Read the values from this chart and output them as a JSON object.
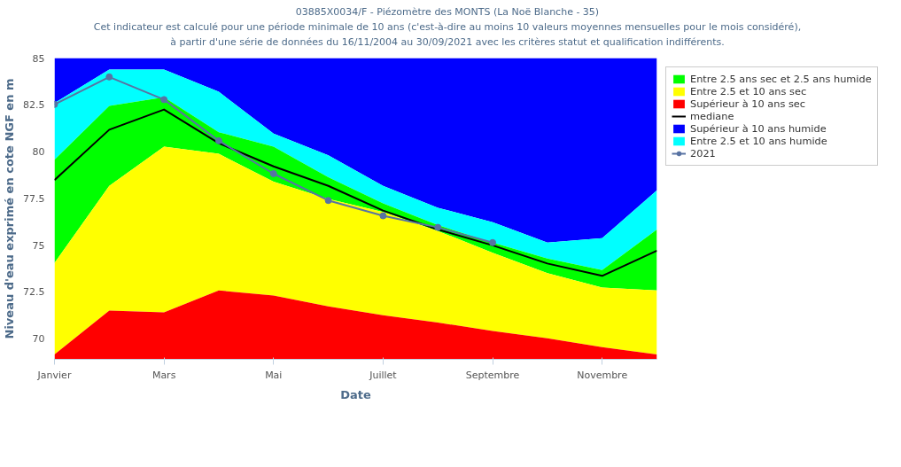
{
  "chart_data": {
    "type": "area",
    "title": "03885X0034/F - Piézomètre des MONTS (La Noë Blanche - 35)",
    "subtitle": "Cet indicateur est calculé pour une période  minimale de 10 ans  (c'est-à-dire au moins 10 valeurs moyennes mensuelles pour le mois considéré),\nà partir d'une série de données du 16/11/2004 au 30/09/2021 avec les critères statut et qualification indifférents.",
    "xlabel": "Date",
    "ylabel": "Niveau d'eau exprimé en cote NGF en m",
    "categories": [
      "Janvier",
      null,
      "Mars",
      null,
      "Mai",
      null,
      "Juillet",
      null,
      "Septembre",
      null,
      "Novembre",
      null
    ],
    "ylim": [
      68.9,
      85
    ],
    "yticks": [
      70,
      72.5,
      75,
      77.5,
      80,
      82.5,
      85
    ],
    "legend": "right",
    "series": [
      {
        "name": "Entre 2.5 ans sec et 2.5 ans humide",
        "color": "#00ff00",
        "values": [
          79.57,
          82.44,
          82.9,
          81.04,
          80.26,
          78.63,
          77.24,
          76.07,
          75.14,
          74.29,
          73.67,
          75.84
        ]
      },
      {
        "name": "Entre 2.5 et 10 ans sec",
        "color": "#ffff00",
        "values": [
          74.05,
          78.17,
          80.26,
          79.88,
          78.4,
          77.47,
          76.77,
          75.76,
          74.6,
          73.51,
          72.74,
          72.58
        ]
      },
      {
        "name": "Supérieur à 10 ans sec",
        "color": "#ff0000",
        "values": [
          69.16,
          71.5,
          71.41,
          72.58,
          72.31,
          71.73,
          71.26,
          70.87,
          70.41,
          70.02,
          69.55,
          69.16
        ]
      },
      {
        "name": "mediane",
        "type": "line",
        "marker": "none",
        "color": "#000000",
        "values": [
          78.48,
          81.17,
          82.25,
          80.45,
          79.21,
          78.17,
          76.85,
          75.84,
          74.99,
          74.02,
          73.36,
          74.71
        ]
      },
      {
        "name": "Supérieur à 10 ans humide",
        "color": "#0000ff",
        "values": [
          85,
          85,
          85,
          85,
          85,
          85,
          85,
          85,
          85,
          85,
          85,
          85
        ]
      },
      {
        "name": "Entre 2.5 et 10 ans humide",
        "color": "#00ffff",
        "values": [
          82.6,
          84.38,
          84.38,
          83.2,
          80.96,
          79.8,
          78.17,
          77.0,
          76.23,
          75.14,
          75.37,
          77.93
        ]
      },
      {
        "name": "2021",
        "type": "line",
        "marker": "circle",
        "color": "#5873a3",
        "values": [
          82.52,
          83.99,
          82.78,
          80.58,
          78.82,
          77.39,
          76.57,
          75.95,
          75.14,
          null,
          null,
          null
        ]
      }
    ]
  }
}
